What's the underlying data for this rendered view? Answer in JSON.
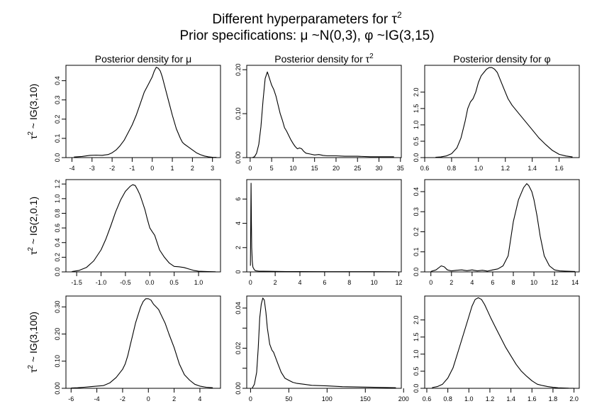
{
  "title": {
    "line1": "Different hyperparameters for τ",
    "line1_sup": "2",
    "line2": "Prior specifications:  μ ~N(0,3),    φ ~IG(3,15)"
  },
  "column_titles": [
    {
      "text": "Posterior density for  μ",
      "sup": ""
    },
    {
      "text": "Posterior density for  τ",
      "sup": "2"
    },
    {
      "text": "Posterior density for  φ",
      "sup": ""
    }
  ],
  "row_labels": [
    {
      "tau": "τ",
      "sup": "2",
      "rest": " ~ IG(3,10)"
    },
    {
      "tau": "τ",
      "sup": "2",
      "rest": " ~ IG(2,0.1)"
    },
    {
      "tau": "τ",
      "sup": "2",
      "rest": " ~ IG(3,100)"
    }
  ],
  "style": {
    "line_color": "#000000",
    "axis_color": "#000000"
  },
  "chart_data": [
    {
      "type": "line",
      "row": 0,
      "col": 0,
      "xlim": [
        -4.3,
        3.4
      ],
      "ylim": [
        0,
        0.48
      ],
      "xticks": [
        -4,
        -3,
        -2,
        -1,
        0,
        1,
        2,
        3
      ],
      "yticks": [
        0.0,
        0.1,
        0.2,
        0.3,
        0.4
      ],
      "xticklabels": [
        "-4",
        "-3",
        "-2",
        "-1",
        "0",
        "1",
        "2",
        "3"
      ],
      "yticklabels": [
        "0.0",
        "0.1",
        "0.2",
        "0.3",
        "0.4"
      ],
      "x": [
        -3.9,
        -3.5,
        -3.1,
        -2.8,
        -2.5,
        -2.2,
        -2.0,
        -1.8,
        -1.6,
        -1.4,
        -1.2,
        -1.0,
        -0.8,
        -0.6,
        -0.4,
        -0.2,
        0.0,
        0.1,
        0.2,
        0.3,
        0.4,
        0.5,
        0.6,
        0.8,
        1.0,
        1.2,
        1.4,
        1.5,
        1.6,
        1.8,
        2.0,
        2.2,
        2.4,
        2.6,
        2.8,
        3.0,
        3.2
      ],
      "y": [
        0.003,
        0.006,
        0.012,
        0.013,
        0.012,
        0.016,
        0.025,
        0.04,
        0.062,
        0.09,
        0.13,
        0.17,
        0.22,
        0.28,
        0.34,
        0.38,
        0.42,
        0.45,
        0.47,
        0.465,
        0.45,
        0.42,
        0.38,
        0.3,
        0.22,
        0.15,
        0.1,
        0.08,
        0.07,
        0.055,
        0.04,
        0.025,
        0.015,
        0.008,
        0.004,
        0.002,
        0.001
      ]
    },
    {
      "type": "line",
      "row": 0,
      "col": 1,
      "xlim": [
        -0.8,
        35.2
      ],
      "ylim": [
        0,
        0.21
      ],
      "xticks": [
        0,
        5,
        10,
        15,
        20,
        25,
        30,
        35
      ],
      "yticks": [
        0.0,
        0.1,
        0.2
      ],
      "xticklabels": [
        "0",
        "5",
        "10",
        "15",
        "20",
        "25",
        "30",
        "35"
      ],
      "yticklabels": [
        "0.00",
        "0.10",
        "0.20"
      ],
      "x": [
        0.5,
        1.0,
        1.5,
        2.0,
        2.5,
        3.0,
        3.5,
        4.0,
        4.5,
        5.0,
        5.5,
        6.0,
        6.5,
        7.0,
        7.5,
        8.0,
        8.5,
        9.0,
        9.5,
        10.0,
        10.5,
        11.0,
        11.5,
        12.0,
        12.5,
        13.0,
        14.0,
        15.0,
        16.0,
        17.0,
        18.0,
        20.0,
        22.0,
        25.0,
        28.0,
        30.0,
        33.0,
        33.5
      ],
      "y": [
        0.0,
        0.002,
        0.01,
        0.03,
        0.07,
        0.13,
        0.18,
        0.195,
        0.18,
        0.165,
        0.155,
        0.14,
        0.12,
        0.1,
        0.085,
        0.068,
        0.06,
        0.05,
        0.04,
        0.032,
        0.025,
        0.02,
        0.022,
        0.02,
        0.014,
        0.01,
        0.008,
        0.006,
        0.007,
        0.005,
        0.004,
        0.004,
        0.003,
        0.003,
        0.002,
        0.002,
        0.002,
        0.002
      ]
    },
    {
      "type": "line",
      "row": 0,
      "col": 2,
      "xlim": [
        0.6,
        1.75
      ],
      "ylim": [
        0,
        2.82
      ],
      "xticks": [
        0.6,
        0.8,
        1.0,
        1.2,
        1.4,
        1.6
      ],
      "yticks": [
        0.0,
        0.5,
        1.0,
        1.5,
        2.0
      ],
      "xticklabels": [
        "0.6",
        "0.8",
        "1.0",
        "1.2",
        "1.4",
        "1.6"
      ],
      "yticklabels": [
        "0.0",
        "0.5",
        "1.0",
        "1.5",
        "2.0"
      ],
      "x": [
        0.68,
        0.72,
        0.76,
        0.8,
        0.84,
        0.87,
        0.9,
        0.92,
        0.94,
        0.96,
        0.98,
        1.0,
        1.02,
        1.04,
        1.06,
        1.08,
        1.1,
        1.12,
        1.14,
        1.16,
        1.18,
        1.2,
        1.22,
        1.25,
        1.3,
        1.35,
        1.4,
        1.45,
        1.5,
        1.55,
        1.6,
        1.65,
        1.7
      ],
      "y": [
        0.01,
        0.02,
        0.05,
        0.12,
        0.3,
        0.6,
        1.1,
        1.5,
        1.7,
        1.8,
        2.0,
        2.3,
        2.5,
        2.6,
        2.7,
        2.75,
        2.75,
        2.7,
        2.6,
        2.4,
        2.2,
        2.0,
        1.8,
        1.6,
        1.35,
        1.1,
        0.85,
        0.6,
        0.4,
        0.22,
        0.1,
        0.05,
        0.02
      ]
    },
    {
      "type": "line",
      "row": 1,
      "col": 0,
      "xlim": [
        -1.72,
        1.45
      ],
      "ylim": [
        0,
        1.26
      ],
      "xticks": [
        -1.5,
        -1.0,
        -0.5,
        0.0,
        0.5,
        1.0
      ],
      "yticks": [
        0.0,
        0.2,
        0.4,
        0.6,
        0.8,
        1.0,
        1.2
      ],
      "xticklabels": [
        "-1.5",
        "-1.0",
        "-0.5",
        "0.0",
        "0.5",
        "1.0"
      ],
      "yticklabels": [
        "0.0",
        "0.2",
        "0.4",
        "0.6",
        "0.8",
        "1.0",
        "1.2"
      ],
      "x": [
        -1.6,
        -1.45,
        -1.3,
        -1.15,
        -1.0,
        -0.9,
        -0.8,
        -0.7,
        -0.6,
        -0.5,
        -0.4,
        -0.35,
        -0.3,
        -0.25,
        -0.2,
        -0.15,
        -0.1,
        -0.05,
        0.0,
        0.05,
        0.1,
        0.15,
        0.2,
        0.3,
        0.4,
        0.5,
        0.6,
        0.7,
        0.8,
        0.9,
        1.0,
        1.2,
        1.35
      ],
      "y": [
        0.005,
        0.02,
        0.06,
        0.15,
        0.3,
        0.45,
        0.63,
        0.82,
        0.98,
        1.1,
        1.17,
        1.19,
        1.18,
        1.12,
        1.05,
        0.95,
        0.85,
        0.72,
        0.6,
        0.55,
        0.5,
        0.4,
        0.3,
        0.2,
        0.12,
        0.075,
        0.07,
        0.06,
        0.04,
        0.02,
        0.01,
        0.005,
        0.002
      ]
    },
    {
      "type": "line",
      "row": 1,
      "col": 1,
      "xlim": [
        -0.3,
        12.2
      ],
      "ylim": [
        0,
        7.6
      ],
      "xticks": [
        0,
        2,
        4,
        6,
        8,
        10,
        12
      ],
      "yticks": [
        0,
        2,
        4,
        6
      ],
      "xticklabels": [
        "0",
        "2",
        "4",
        "6",
        "8",
        "10",
        "12"
      ],
      "yticklabels": [
        "0",
        "2",
        "4",
        "6"
      ],
      "x": [
        0.0,
        0.03,
        0.05,
        0.08,
        0.1,
        0.15,
        0.2,
        0.3,
        0.4,
        0.5,
        0.7,
        1.0,
        2.0,
        3.0,
        4.0,
        6.0,
        8.0,
        10.0,
        11.8
      ],
      "y": [
        0.5,
        5.0,
        7.3,
        4.0,
        2.0,
        0.9,
        0.4,
        0.2,
        0.1,
        0.08,
        0.06,
        0.05,
        0.04,
        0.03,
        0.03,
        0.02,
        0.02,
        0.02,
        0.01
      ]
    },
    {
      "type": "line",
      "row": 1,
      "col": 2,
      "xlim": [
        -0.6,
        14.4
      ],
      "ylim": [
        0,
        0.46
      ],
      "xticks": [
        0,
        2,
        4,
        6,
        8,
        10,
        12,
        14
      ],
      "yticks": [
        0.0,
        0.1,
        0.2,
        0.3,
        0.4
      ],
      "xticklabels": [
        "0",
        "2",
        "4",
        "6",
        "8",
        "10",
        "12",
        "14"
      ],
      "yticklabels": [
        "0.0",
        "0.1",
        "0.2",
        "0.3",
        "0.4"
      ],
      "x": [
        0.0,
        0.5,
        1.0,
        1.3,
        1.6,
        2.0,
        2.5,
        3.0,
        3.5,
        4.0,
        4.5,
        5.0,
        5.5,
        6.0,
        6.5,
        7.0,
        7.5,
        8.0,
        8.5,
        9.0,
        9.3,
        9.5,
        9.8,
        10.0,
        10.3,
        10.6,
        11.0,
        11.5,
        12.0,
        12.5,
        13.0,
        13.5,
        14.0
      ],
      "y": [
        0.002,
        0.01,
        0.03,
        0.025,
        0.01,
        0.005,
        0.008,
        0.01,
        0.006,
        0.01,
        0.005,
        0.008,
        0.004,
        0.01,
        0.015,
        0.03,
        0.08,
        0.25,
        0.36,
        0.42,
        0.44,
        0.43,
        0.4,
        0.36,
        0.28,
        0.18,
        0.08,
        0.03,
        0.01,
        0.005,
        0.004,
        0.003,
        0.002
      ]
    },
    {
      "type": "line",
      "row": 2,
      "col": 0,
      "xlim": [
        -6.4,
        5.6
      ],
      "ylim": [
        0,
        0.34
      ],
      "xticks": [
        -6,
        -4,
        -2,
        0,
        2,
        4
      ],
      "yticks": [
        0.0,
        0.1,
        0.2,
        0.3
      ],
      "xticklabels": [
        "-6",
        "-4",
        "-2",
        "0",
        "2",
        "4"
      ],
      "yticklabels": [
        "0.00",
        "0.10",
        "0.20",
        "0.30"
      ],
      "x": [
        -6.0,
        -5.5,
        -5.0,
        -4.5,
        -4.0,
        -3.5,
        -3.0,
        -2.5,
        -2.0,
        -1.8,
        -1.6,
        -1.4,
        -1.2,
        -1.0,
        -0.8,
        -0.6,
        -0.4,
        -0.2,
        0.0,
        0.2,
        0.4,
        0.6,
        0.8,
        1.0,
        1.3,
        1.6,
        2.0,
        2.4,
        2.8,
        3.2,
        3.6,
        4.0,
        4.5,
        5.0
      ],
      "y": [
        0.001,
        0.002,
        0.004,
        0.006,
        0.008,
        0.01,
        0.02,
        0.04,
        0.07,
        0.09,
        0.12,
        0.16,
        0.2,
        0.24,
        0.27,
        0.3,
        0.32,
        0.33,
        0.33,
        0.325,
        0.31,
        0.3,
        0.29,
        0.27,
        0.24,
        0.2,
        0.15,
        0.09,
        0.05,
        0.03,
        0.015,
        0.008,
        0.004,
        0.002
      ]
    },
    {
      "type": "line",
      "row": 2,
      "col": 1,
      "xlim": [
        -5,
        197
      ],
      "ylim": [
        0,
        0.046
      ],
      "xticks": [
        0,
        50,
        100,
        150,
        200
      ],
      "yticks": [
        0.0,
        0.01,
        0.02,
        0.03,
        0.04
      ],
      "xticklabels": [
        "0",
        "50",
        "100",
        "150",
        "200"
      ],
      "yticklabels": [
        "0.00",
        "",
        "0.02",
        "",
        "0.04"
      ],
      "x": [
        2,
        5,
        8,
        10,
        12,
        14,
        16,
        18,
        20,
        22,
        25,
        28,
        30,
        33,
        36,
        40,
        45,
        50,
        55,
        60,
        70,
        80,
        100,
        120,
        150,
        190
      ],
      "y": [
        0.0,
        0.002,
        0.008,
        0.02,
        0.035,
        0.042,
        0.045,
        0.044,
        0.038,
        0.03,
        0.022,
        0.019,
        0.018,
        0.015,
        0.012,
        0.008,
        0.005,
        0.004,
        0.003,
        0.0025,
        0.002,
        0.0015,
        0.0012,
        0.0008,
        0.0006,
        0.0003
      ]
    },
    {
      "type": "line",
      "row": 2,
      "col": 2,
      "xlim": [
        0.58,
        2.05
      ],
      "ylim": [
        0,
        2.7
      ],
      "xticks": [
        0.6,
        0.8,
        1.0,
        1.2,
        1.4,
        1.6,
        1.8,
        2.0
      ],
      "yticks": [
        0.0,
        0.5,
        1.0,
        1.5,
        2.0
      ],
      "xticklabels": [
        "0.6",
        "0.8",
        "1.0",
        "1.2",
        "1.4",
        "1.6",
        "1.8",
        "2.0"
      ],
      "yticklabels": [
        "0.0",
        "0.5",
        "1.0",
        "1.5",
        "2.0"
      ],
      "x": [
        0.65,
        0.7,
        0.75,
        0.8,
        0.85,
        0.9,
        0.95,
        1.0,
        1.03,
        1.06,
        1.09,
        1.12,
        1.15,
        1.18,
        1.21,
        1.25,
        1.3,
        1.35,
        1.4,
        1.45,
        1.5,
        1.55,
        1.6,
        1.65,
        1.7,
        1.75,
        1.8,
        1.85,
        1.9,
        1.95,
        2.0
      ],
      "y": [
        0.02,
        0.05,
        0.12,
        0.3,
        0.6,
        1.1,
        1.6,
        2.1,
        2.4,
        2.6,
        2.65,
        2.6,
        2.45,
        2.25,
        2.05,
        1.8,
        1.5,
        1.2,
        0.95,
        0.7,
        0.5,
        0.35,
        0.22,
        0.12,
        0.08,
        0.05,
        0.03,
        0.015,
        0.01,
        0.005,
        0.002
      ]
    }
  ]
}
